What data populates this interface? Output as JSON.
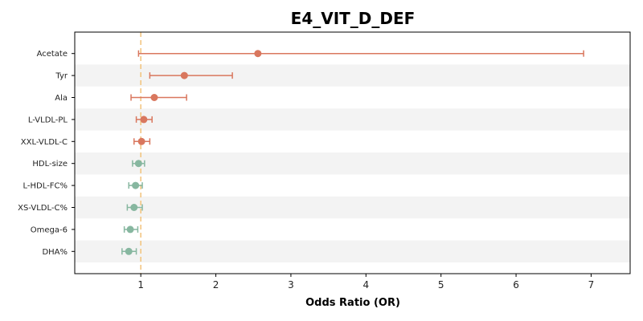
{
  "chart_data": {
    "type": "scatter",
    "title": "E4_VIT_D_DEF",
    "xlabel": "Odds Ratio (OR)",
    "ylabel": "",
    "xlim": [
      0.12,
      7.52
    ],
    "xticks": [
      1,
      2,
      3,
      4,
      5,
      6,
      7
    ],
    "reference_line": 1,
    "grid": false,
    "row_shading": "alternating",
    "colors": {
      "positive": "#d9775e",
      "negative": "#87b7a0",
      "reference_line": "#f2c27a",
      "band": "#f3f3f3"
    },
    "categories": [
      "Acetate",
      "Tyr",
      "Ala",
      "L-VLDL-PL",
      "XXL-VLDL-C",
      "HDL-size",
      "L-HDL-FC%",
      "XS-VLDL-C%",
      "Omega-6",
      "DHA%"
    ],
    "points": [
      {
        "label": "Acetate",
        "or": 2.56,
        "ci_low": 0.97,
        "ci_high": 6.9,
        "group": "positive"
      },
      {
        "label": "Tyr",
        "or": 1.58,
        "ci_low": 1.12,
        "ci_high": 2.22,
        "group": "positive"
      },
      {
        "label": "Ala",
        "or": 1.18,
        "ci_low": 0.87,
        "ci_high": 1.61,
        "group": "positive"
      },
      {
        "label": "L-VLDL-PL",
        "or": 1.04,
        "ci_low": 0.94,
        "ci_high": 1.15,
        "group": "positive"
      },
      {
        "label": "XXL-VLDL-C",
        "or": 1.01,
        "ci_low": 0.91,
        "ci_high": 1.12,
        "group": "positive"
      },
      {
        "label": "HDL-size",
        "or": 0.97,
        "ci_low": 0.89,
        "ci_high": 1.05,
        "group": "negative"
      },
      {
        "label": "L-HDL-FC%",
        "or": 0.93,
        "ci_low": 0.84,
        "ci_high": 1.02,
        "group": "negative"
      },
      {
        "label": "XS-VLDL-C%",
        "or": 0.91,
        "ci_low": 0.82,
        "ci_high": 1.02,
        "group": "negative"
      },
      {
        "label": "Omega-6",
        "or": 0.86,
        "ci_low": 0.78,
        "ci_high": 0.96,
        "group": "negative"
      },
      {
        "label": "DHA%",
        "or": 0.84,
        "ci_low": 0.75,
        "ci_high": 0.94,
        "group": "negative"
      }
    ]
  }
}
